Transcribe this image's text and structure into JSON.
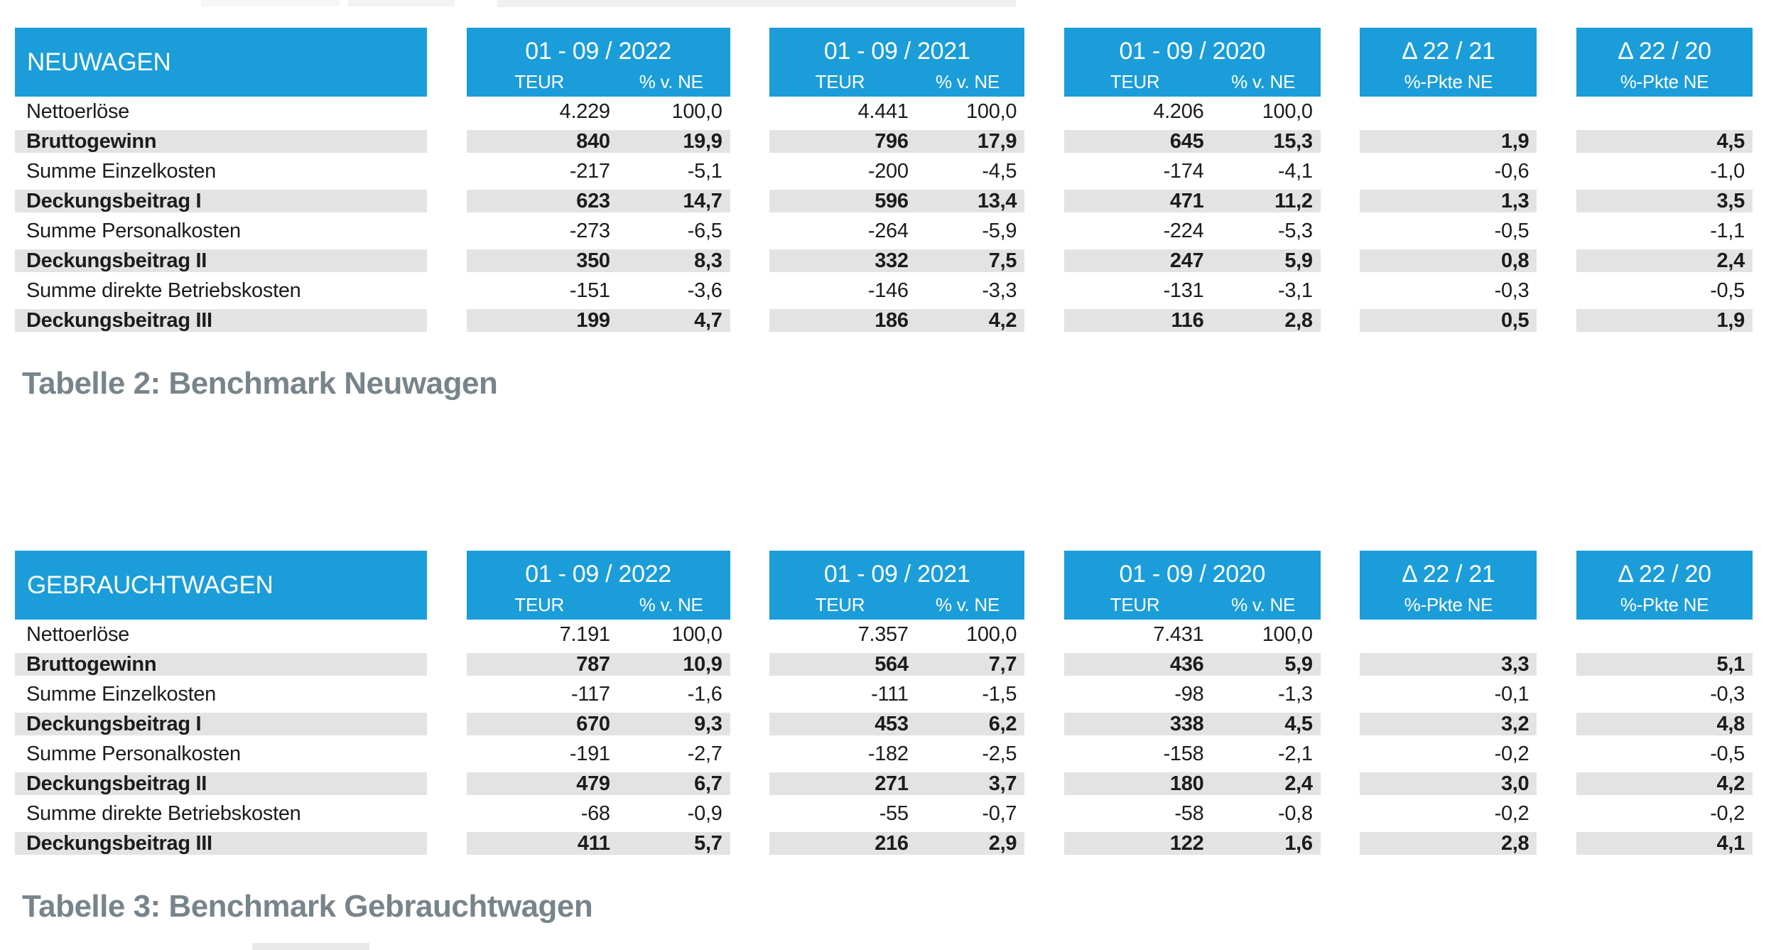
{
  "accent_color": "#1b9dd9",
  "band_color": "#e3e3e3",
  "caption_color": "#78848b",
  "tables": [
    {
      "title": "NEUWAGEN",
      "caption": "Tabelle 2: Benchmark Neuwagen",
      "period_columns": [
        {
          "label": "01 - 09 / 2022",
          "sub": [
            "TEUR",
            "% v. NE"
          ]
        },
        {
          "label": "01 - 09 / 2021",
          "sub": [
            "TEUR",
            "% v. NE"
          ]
        },
        {
          "label": "01 - 09 / 2020",
          "sub": [
            "TEUR",
            "% v. NE"
          ]
        }
      ],
      "delta_columns": [
        {
          "label": "Δ 22 / 21",
          "sub": "%-Pkte NE"
        },
        {
          "label": "Δ 22 / 20",
          "sub": "%-Pkte NE"
        }
      ],
      "rows": [
        {
          "label": "Nettoerlöse",
          "bold": false,
          "values": [
            [
              "4.229",
              "100,0"
            ],
            [
              "4.441",
              "100,0"
            ],
            [
              "4.206",
              "100,0"
            ]
          ],
          "deltas": [
            "",
            ""
          ]
        },
        {
          "label": "Bruttogewinn",
          "bold": true,
          "values": [
            [
              "840",
              "19,9"
            ],
            [
              "796",
              "17,9"
            ],
            [
              "645",
              "15,3"
            ]
          ],
          "deltas": [
            "1,9",
            "4,5"
          ]
        },
        {
          "label": "Summe Einzelkosten",
          "bold": false,
          "values": [
            [
              "-217",
              "-5,1"
            ],
            [
              "-200",
              "-4,5"
            ],
            [
              "-174",
              "-4,1"
            ]
          ],
          "deltas": [
            "-0,6",
            "-1,0"
          ]
        },
        {
          "label": "Deckungsbeitrag I",
          "bold": true,
          "values": [
            [
              "623",
              "14,7"
            ],
            [
              "596",
              "13,4"
            ],
            [
              "471",
              "11,2"
            ]
          ],
          "deltas": [
            "1,3",
            "3,5"
          ]
        },
        {
          "label": "Summe Personalkosten",
          "bold": false,
          "values": [
            [
              "-273",
              "-6,5"
            ],
            [
              "-264",
              "-5,9"
            ],
            [
              "-224",
              "-5,3"
            ]
          ],
          "deltas": [
            "-0,5",
            "-1,1"
          ]
        },
        {
          "label": "Deckungsbeitrag II",
          "bold": true,
          "values": [
            [
              "350",
              "8,3"
            ],
            [
              "332",
              "7,5"
            ],
            [
              "247",
              "5,9"
            ]
          ],
          "deltas": [
            "0,8",
            "2,4"
          ]
        },
        {
          "label": "Summe direkte Betriebskosten",
          "bold": false,
          "values": [
            [
              "-151",
              "-3,6"
            ],
            [
              "-146",
              "-3,3"
            ],
            [
              "-131",
              "-3,1"
            ]
          ],
          "deltas": [
            "-0,3",
            "-0,5"
          ]
        },
        {
          "label": "Deckungsbeitrag III",
          "bold": true,
          "values": [
            [
              "199",
              "4,7"
            ],
            [
              "186",
              "4,2"
            ],
            [
              "116",
              "2,8"
            ]
          ],
          "deltas": [
            "0,5",
            "1,9"
          ]
        }
      ]
    },
    {
      "title": "GEBRAUCHTWAGEN",
      "caption": "Tabelle 3: Benchmark Gebrauchtwagen",
      "period_columns": [
        {
          "label": "01 - 09 / 2022",
          "sub": [
            "TEUR",
            "% v. NE"
          ]
        },
        {
          "label": "01 - 09 / 2021",
          "sub": [
            "TEUR",
            "% v. NE"
          ]
        },
        {
          "label": "01 - 09 / 2020",
          "sub": [
            "TEUR",
            "% v. NE"
          ]
        }
      ],
      "delta_columns": [
        {
          "label": "Δ 22 / 21",
          "sub": "%-Pkte NE"
        },
        {
          "label": "Δ 22 / 20",
          "sub": "%-Pkte NE"
        }
      ],
      "rows": [
        {
          "label": "Nettoerlöse",
          "bold": false,
          "values": [
            [
              "7.191",
              "100,0"
            ],
            [
              "7.357",
              "100,0"
            ],
            [
              "7.431",
              "100,0"
            ]
          ],
          "deltas": [
            "",
            ""
          ]
        },
        {
          "label": "Bruttogewinn",
          "bold": true,
          "values": [
            [
              "787",
              "10,9"
            ],
            [
              "564",
              "7,7"
            ],
            [
              "436",
              "5,9"
            ]
          ],
          "deltas": [
            "3,3",
            "5,1"
          ]
        },
        {
          "label": "Summe Einzelkosten",
          "bold": false,
          "values": [
            [
              "-117",
              "-1,6"
            ],
            [
              "-111",
              "-1,5"
            ],
            [
              "-98",
              "-1,3"
            ]
          ],
          "deltas": [
            "-0,1",
            "-0,3"
          ]
        },
        {
          "label": "Deckungsbeitrag I",
          "bold": true,
          "values": [
            [
              "670",
              "9,3"
            ],
            [
              "453",
              "6,2"
            ],
            [
              "338",
              "4,5"
            ]
          ],
          "deltas": [
            "3,2",
            "4,8"
          ]
        },
        {
          "label": "Summe Personalkosten",
          "bold": false,
          "values": [
            [
              "-191",
              "-2,7"
            ],
            [
              "-182",
              "-2,5"
            ],
            [
              "-158",
              "-2,1"
            ]
          ],
          "deltas": [
            "-0,2",
            "-0,5"
          ]
        },
        {
          "label": "Deckungsbeitrag II",
          "bold": true,
          "values": [
            [
              "479",
              "6,7"
            ],
            [
              "271",
              "3,7"
            ],
            [
              "180",
              "2,4"
            ]
          ],
          "deltas": [
            "3,0",
            "4,2"
          ]
        },
        {
          "label": "Summe direkte Betriebskosten",
          "bold": false,
          "values": [
            [
              "-68",
              "-0,9"
            ],
            [
              "-55",
              "-0,7"
            ],
            [
              "-58",
              "-0,8"
            ]
          ],
          "deltas": [
            "-0,2",
            "-0,2"
          ]
        },
        {
          "label": "Deckungsbeitrag III",
          "bold": true,
          "values": [
            [
              "411",
              "5,7"
            ],
            [
              "216",
              "2,9"
            ],
            [
              "122",
              "1,6"
            ]
          ],
          "deltas": [
            "2,8",
            "4,1"
          ]
        }
      ]
    }
  ]
}
